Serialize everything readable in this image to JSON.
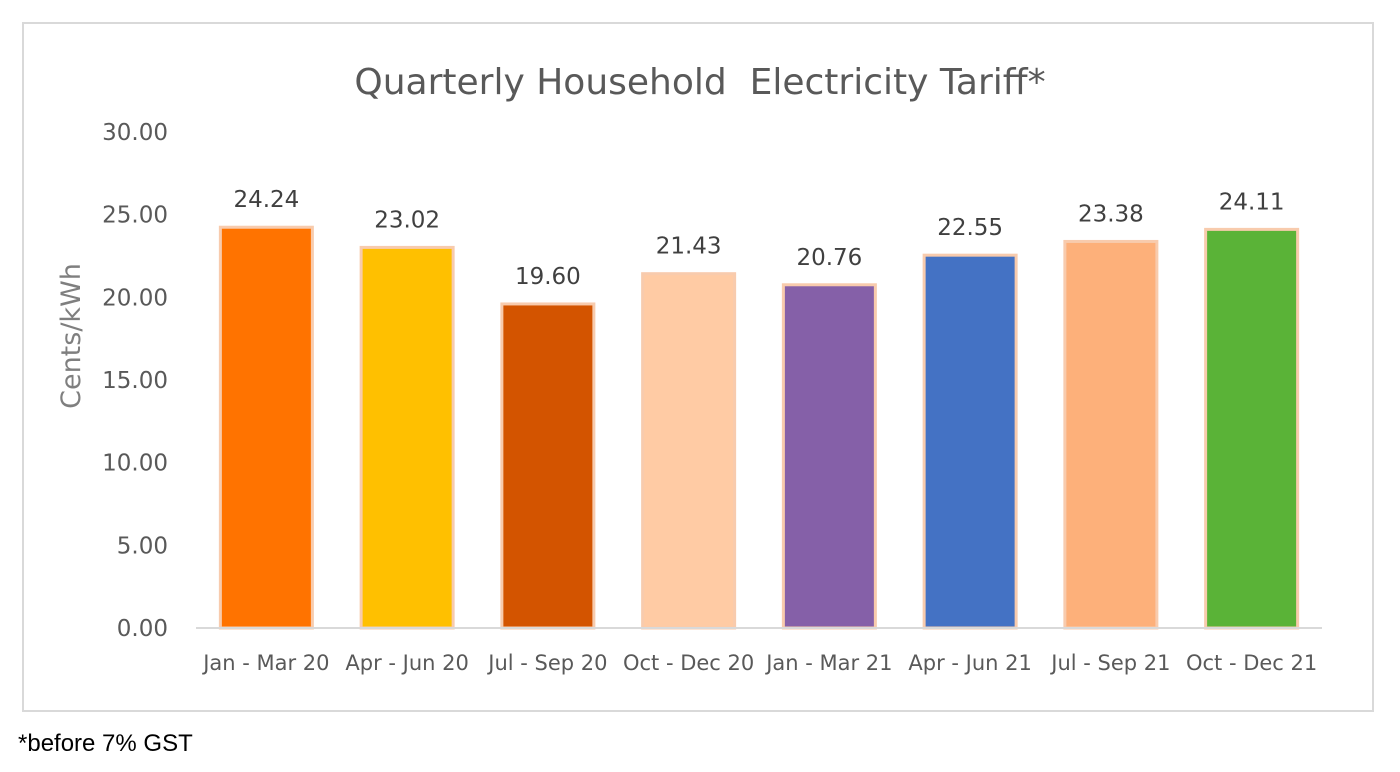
{
  "chart_data": {
    "type": "bar",
    "title": "Quarterly Household  Electricity Tariff*",
    "ylabel": "Cents/kWh",
    "xlabel": "",
    "ylim": [
      0,
      30
    ],
    "yticks": [
      "0.00",
      "5.00",
      "10.00",
      "15.00",
      "20.00",
      "25.00",
      "30.00"
    ],
    "ytick_values": [
      0,
      5,
      10,
      15,
      20,
      25,
      30
    ],
    "grid": false,
    "legend": "none",
    "categories": [
      "Jan - Mar 20",
      "Apr - Jun 20",
      "Jul - Sep 20",
      "Oct - Dec 20",
      "Jan - Mar 21",
      "Apr - Jun 21",
      "Jul - Sep 21",
      "Oct - Dec 21"
    ],
    "values": [
      24.24,
      23.02,
      19.6,
      21.43,
      20.76,
      22.55,
      23.38,
      24.11
    ],
    "value_labels": [
      "24.24",
      "23.02",
      "19.60",
      "21.43",
      "20.76",
      "22.55",
      "23.38",
      "24.11"
    ],
    "bar_colors": [
      "#ff7300",
      "#ffc000",
      "#d35400",
      "#ffcba4",
      "#8560a8",
      "#4472c4",
      "#fdb07a",
      "#5ab337"
    ],
    "bar_outline_color": "#f8cbad",
    "axis_color": "#d9d9d9"
  },
  "footnote": "*before 7% GST"
}
